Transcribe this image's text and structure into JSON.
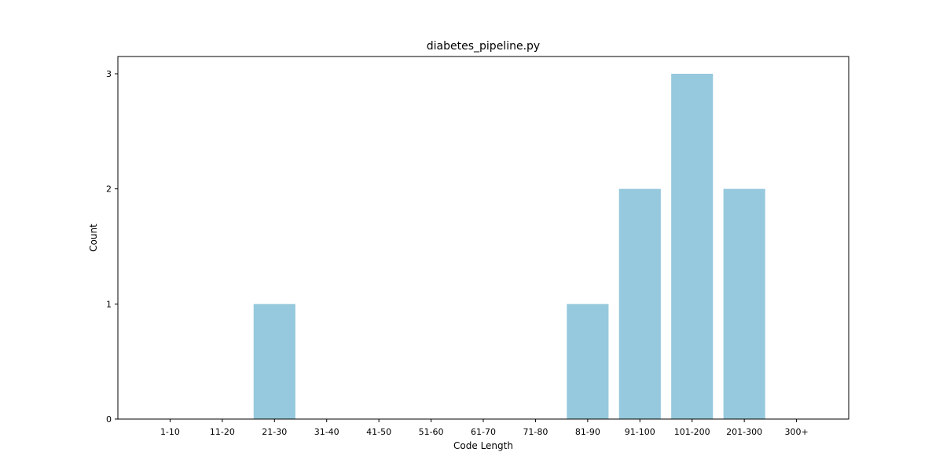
{
  "chart_data": {
    "type": "bar",
    "title": "diabetes_pipeline.py",
    "xlabel": "Code Length",
    "ylabel": "Count",
    "categories": [
      "1-10",
      "11-20",
      "21-30",
      "31-40",
      "41-50",
      "51-60",
      "61-70",
      "71-80",
      "81-90",
      "91-100",
      "101-200",
      "201-300",
      "300+"
    ],
    "values": [
      0,
      0,
      1,
      0,
      0,
      0,
      0,
      0,
      1,
      2,
      3,
      2,
      0
    ],
    "yticks": [
      0,
      1,
      2,
      3
    ],
    "ylim": [
      0,
      3.15
    ],
    "grid": false,
    "legend": "none",
    "bar_color": "#96c9dd"
  }
}
